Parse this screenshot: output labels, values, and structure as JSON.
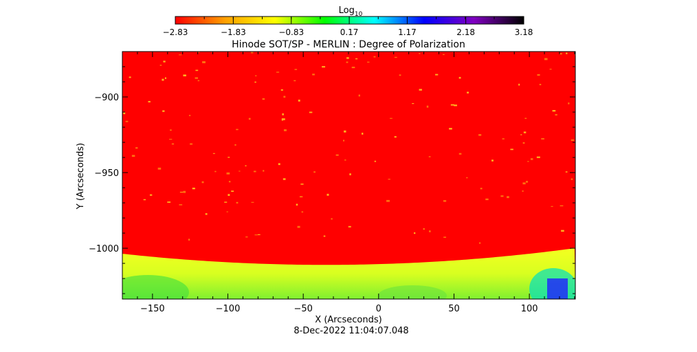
{
  "chart_data": {
    "type": "heatmap",
    "title": "Hinode SOT/SP - MERLIN : Degree of Polarization",
    "xlabel": "X (Arcseconds)",
    "ylabel": "Y (Arcseconds)",
    "xlim": [
      -170,
      130.5
    ],
    "ylim": [
      -1033.6,
      -870
    ],
    "xticks": [
      -150,
      -100,
      -50,
      0,
      50,
      100
    ],
    "xtick_labels": [
      "−150",
      "−100",
      "−50",
      "0",
      "50",
      "100"
    ],
    "yticks": [
      -900,
      -950,
      -1000
    ],
    "ytick_labels": [
      "−900",
      "−950",
      "−1000"
    ],
    "colorbar": {
      "label_base": "Log",
      "label_sub": "10",
      "range": [
        -2.83,
        3.18
      ],
      "ticks": [
        -2.83,
        -1.83,
        -0.83,
        0.17,
        1.17,
        2.18,
        3.18
      ],
      "tick_labels": [
        "−2.83",
        "−1.83",
        "−0.83",
        "0.17",
        "1.17",
        "2.18",
        "3.18"
      ],
      "colors": [
        "#ff0000",
        "#ffa000",
        "#ffff00",
        "#00ff00",
        "#00ffff",
        "#0000ff",
        "#8000c0",
        "#000000"
      ]
    },
    "limb": {
      "description_values": {
        "edge_y": -1000,
        "center_y": -1011
      }
    },
    "timestamp": "8-Dec-2022 11:04:07.048"
  }
}
